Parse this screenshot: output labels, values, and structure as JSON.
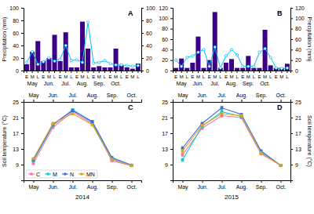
{
  "chart_data": [
    {
      "type": "bar",
      "title": "A",
      "categories": [
        "E",
        "M",
        "L",
        "E",
        "M",
        "L",
        "E",
        "M",
        "L",
        "E",
        "M",
        "L",
        "E",
        "M",
        "L",
        "E",
        "M",
        "L",
        "E",
        "M",
        "L"
      ],
      "annotations": [
        "May",
        "Jun.",
        "Jul.",
        "Aug.",
        "Sep.",
        "Oct."
      ],
      "ylabel": "Precipitation (mm)",
      "ylim": [
        0,
        100
      ],
      "yticks": [
        0,
        20,
        40,
        60,
        80,
        100
      ],
      "y2lim": [
        0,
        100
      ],
      "y2ticks": [
        0,
        20,
        40,
        60,
        80,
        100
      ],
      "series": [
        {
          "type": "bar",
          "color": "#3d008a",
          "values": [
            10,
            30,
            47,
            15,
            20,
            57,
            15,
            61,
            5,
            5,
            78,
            35,
            5,
            7,
            5,
            5,
            35,
            8,
            5,
            3,
            11
          ]
        },
        {
          "type": "line",
          "color": "#00BFFF",
          "marker": "circle",
          "values": [
            13,
            30,
            10,
            14,
            20,
            15,
            18,
            40,
            16,
            17,
            13,
            77,
            12,
            13,
            16,
            11,
            9,
            9,
            8,
            7,
            8
          ]
        }
      ]
    },
    {
      "type": "bar",
      "title": "B",
      "categories": [
        "E",
        "M",
        "L",
        "E",
        "M",
        "L",
        "E",
        "M",
        "L",
        "E",
        "M",
        "L",
        "E",
        "M",
        "L",
        "E",
        "M",
        "L",
        "E",
        "M",
        "L"
      ],
      "annotations": [
        "May",
        "Jun.",
        "Jul.",
        "Aug.",
        "Sep.",
        "Oct."
      ],
      "y2label": "Precipitation (mm)",
      "ylim": [
        0,
        120
      ],
      "yticks": [
        0,
        20,
        40,
        60,
        80,
        100,
        120
      ],
      "y2lim": [
        0,
        120
      ],
      "y2ticks": [
        0,
        20,
        40,
        60,
        80,
        100,
        120
      ],
      "series": [
        {
          "type": "bar",
          "color": "#3d008a",
          "values": [
            5,
            23,
            5,
            15,
            65,
            5,
            20,
            112,
            5,
            15,
            22,
            5,
            5,
            28,
            5,
            5,
            78,
            10,
            5,
            5,
            13
          ]
        },
        {
          "type": "line",
          "color": "#00BFFF",
          "marker": "circle",
          "values": [
            20,
            8,
            25,
            28,
            35,
            40,
            8,
            45,
            5,
            28,
            40,
            30,
            8,
            8,
            8,
            35,
            42,
            25,
            5,
            4,
            5
          ]
        }
      ]
    },
    {
      "type": "line",
      "title": "C",
      "categories": [
        "May",
        "Jun.",
        "Jul.",
        "Aug.",
        "Sep.",
        "Oct."
      ],
      "xlabel": "2014",
      "ylabel": "Soil temperature (°C)",
      "ylim": [
        5,
        25
      ],
      "yticks": [
        9,
        13,
        17,
        21,
        25
      ],
      "legend": "lower left",
      "series": [
        {
          "name": "C",
          "color": "#FF69B4",
          "marker": "circle",
          "values": [
            9.3,
            18.5,
            22.5,
            19.5,
            10.0,
            8.7
          ],
          "errors": [
            0.3,
            0.3,
            0.3,
            0.3,
            0.3,
            0.2
          ]
        },
        {
          "name": "M",
          "color": "#00CED1",
          "marker": "circle",
          "values": [
            10.0,
            19.0,
            23.0,
            19.8,
            10.5,
            8.8
          ],
          "errors": [
            0.3,
            0.3,
            0.3,
            0.3,
            0.3,
            0.2
          ]
        },
        {
          "name": "N",
          "color": "#4169E1",
          "marker": "circle",
          "values": [
            10.2,
            19.3,
            22.8,
            20.0,
            10.8,
            8.9
          ],
          "errors": [
            0.3,
            0.3,
            0.3,
            0.3,
            0.3,
            0.2
          ]
        },
        {
          "name": "MN",
          "color": "#DAA520",
          "marker": "circle",
          "values": [
            10.5,
            19.5,
            22.0,
            19.2,
            10.3,
            8.8
          ],
          "errors": [
            0.3,
            0.3,
            0.3,
            0.3,
            0.3,
            0.2
          ]
        }
      ]
    },
    {
      "type": "line",
      "title": "D",
      "categories": [
        "May",
        "Jun.",
        "Jul.",
        "Aug.",
        "Sep.",
        "Oct."
      ],
      "xlabel": "2015",
      "y2label": "Soil temperature (°C)",
      "ylim": [
        5,
        25
      ],
      "yticks": [
        9,
        13,
        17,
        21,
        25
      ],
      "y2lim": [
        5,
        25
      ],
      "y2ticks": [
        9,
        13,
        17,
        21,
        25
      ],
      "series": [
        {
          "name": "C",
          "color": "#FF69B4",
          "marker": "circle",
          "values": [
            11.5,
            18.3,
            21.5,
            21.0,
            11.8,
            8.8
          ],
          "errors": [
            0.4,
            0.3,
            0.4,
            0.3,
            0.3,
            0.2
          ]
        },
        {
          "name": "M",
          "color": "#00CED1",
          "marker": "circle",
          "values": [
            10.2,
            18.8,
            22.5,
            21.3,
            12.2,
            8.8
          ],
          "errors": [
            0.4,
            0.3,
            0.4,
            0.3,
            0.3,
            0.2
          ]
        },
        {
          "name": "N",
          "color": "#4169E1",
          "marker": "circle",
          "values": [
            13.2,
            19.5,
            23.5,
            21.8,
            12.5,
            8.8
          ],
          "errors": [
            0.4,
            0.3,
            0.4,
            0.3,
            0.3,
            0.2
          ]
        },
        {
          "name": "MN",
          "color": "#DAA520",
          "marker": "circle",
          "values": [
            12.5,
            19.0,
            22.0,
            21.5,
            12.0,
            8.8
          ],
          "errors": [
            0.4,
            0.3,
            0.4,
            0.3,
            0.3,
            0.2
          ]
        }
      ]
    }
  ]
}
